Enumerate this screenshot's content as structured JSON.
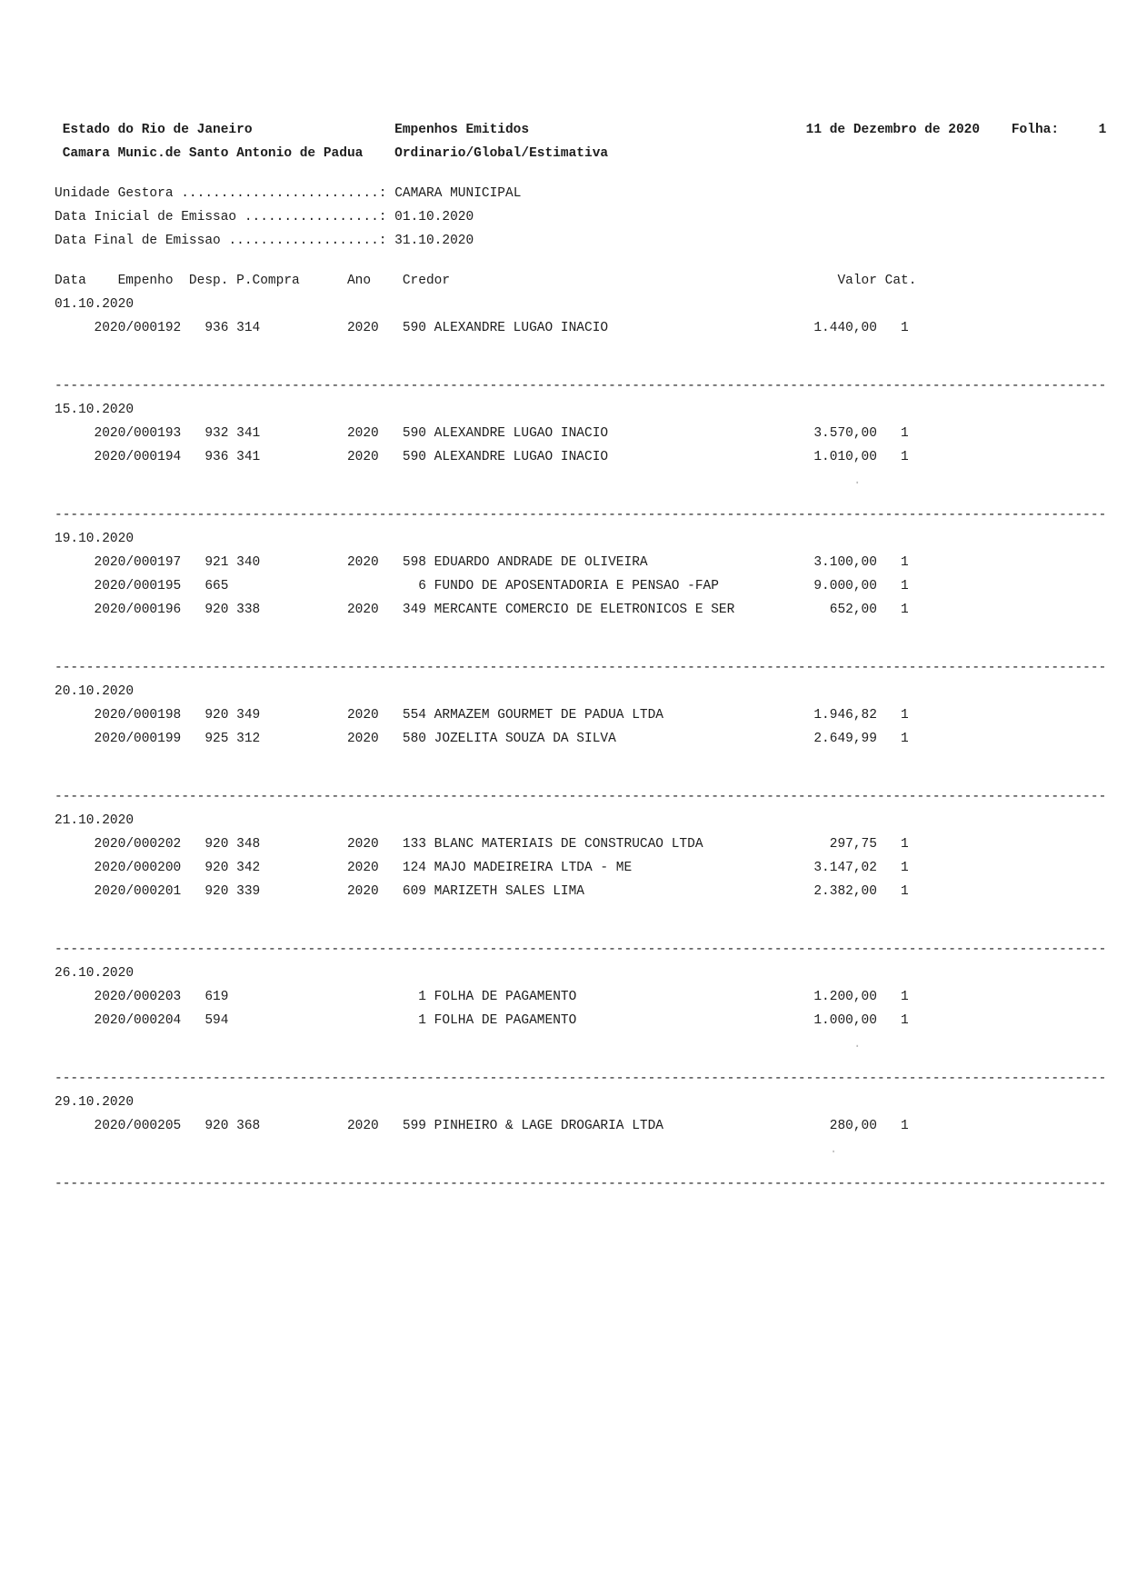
{
  "page": {
    "header": {
      "org_line1": "Estado do Rio de Janeiro",
      "org_line2": "Camara Munic.de Santo Antonio de Padua",
      "report_title": "Empenhos Emitidos",
      "report_subtitle": "Ordinario/Global/Estimativa",
      "emission_date": "11 de Dezembro de 2020",
      "folha_label": "Folha:",
      "folha_number": "1"
    },
    "filters": [
      {
        "label": "Unidade Gestora ",
        "dots": ".........................: ",
        "value": "CAMARA MUNICIPAL"
      },
      {
        "label": "Data Inicial de Emissao ",
        "dots": ".................: ",
        "value": "01.10.2020"
      },
      {
        "label": "Data Final de Emissao ",
        "dots": "...................: ",
        "value": "31.10.2020"
      }
    ],
    "columns": {
      "data": "Data",
      "empenho": "Empenho",
      "desp": "Desp.",
      "pcompra": "P.Compra",
      "ano": "Ano",
      "credor": "Credor",
      "valor": "Valor",
      "cat": "Cat."
    },
    "groups": [
      {
        "date": "01.10.2020",
        "trailing_dot": false,
        "rows": [
          {
            "empenho": "2020/000192",
            "desp": "936",
            "pcompra": "314",
            "ano": "2020",
            "credor_cod": "590",
            "credor": "ALEXANDRE LUGAO INACIO",
            "valor": "1.440,00",
            "cat": "1"
          }
        ]
      },
      {
        "date": "15.10.2020",
        "trailing_dot": true,
        "dot_col": 101,
        "rows": [
          {
            "empenho": "2020/000193",
            "desp": "932",
            "pcompra": "341",
            "ano": "2020",
            "credor_cod": "590",
            "credor": "ALEXANDRE LUGAO INACIO",
            "valor": "3.570,00",
            "cat": "1"
          },
          {
            "empenho": "2020/000194",
            "desp": "936",
            "pcompra": "341",
            "ano": "2020",
            "credor_cod": "590",
            "credor": "ALEXANDRE LUGAO INACIO",
            "valor": "1.010,00",
            "cat": "1"
          }
        ]
      },
      {
        "date": "19.10.2020",
        "trailing_dot": false,
        "rows": [
          {
            "empenho": "2020/000197",
            "desp": "921",
            "pcompra": "340",
            "ano": "2020",
            "credor_cod": "598",
            "credor": "EDUARDO ANDRADE DE OLIVEIRA",
            "valor": "3.100,00",
            "cat": "1"
          },
          {
            "empenho": "2020/000195",
            "desp": "665",
            "pcompra": "",
            "ano": "",
            "credor_cod": "6",
            "credor": "FUNDO DE APOSENTADORIA E PENSAO -FAP",
            "valor": "9.000,00",
            "cat": "1"
          },
          {
            "empenho": "2020/000196",
            "desp": "920",
            "pcompra": "338",
            "ano": "2020",
            "credor_cod": "349",
            "credor": "MERCANTE COMERCIO DE ELETRONICOS E SER",
            "valor": "652,00",
            "cat": "1"
          }
        ]
      },
      {
        "date": "20.10.2020",
        "trailing_dot": false,
        "rows": [
          {
            "empenho": "2020/000198",
            "desp": "920",
            "pcompra": "349",
            "ano": "2020",
            "credor_cod": "554",
            "credor": "ARMAZEM GOURMET DE PADUA LTDA",
            "valor": "1.946,82",
            "cat": "1"
          },
          {
            "empenho": "2020/000199",
            "desp": "925",
            "pcompra": "312",
            "ano": "2020",
            "credor_cod": "580",
            "credor": "JOZELITA SOUZA DA SILVA",
            "valor": "2.649,99",
            "cat": "1"
          }
        ]
      },
      {
        "date": "21.10.2020",
        "trailing_dot": false,
        "rows": [
          {
            "empenho": "2020/000202",
            "desp": "920",
            "pcompra": "348",
            "ano": "2020",
            "credor_cod": "133",
            "credor": "BLANC MATERIAIS DE CONSTRUCAO LTDA",
            "valor": "297,75",
            "cat": "1"
          },
          {
            "empenho": "2020/000200",
            "desp": "920",
            "pcompra": "342",
            "ano": "2020",
            "credor_cod": "124",
            "credor": "MAJO MADEIREIRA LTDA - ME",
            "valor": "3.147,02",
            "cat": "1"
          },
          {
            "empenho": "2020/000201",
            "desp": "920",
            "pcompra": "339",
            "ano": "2020",
            "credor_cod": "609",
            "credor": "MARIZETH SALES LIMA",
            "valor": "2.382,00",
            "cat": "1"
          }
        ]
      },
      {
        "date": "26.10.2020",
        "trailing_dot": true,
        "dot_col": 101,
        "rows": [
          {
            "empenho": "2020/000203",
            "desp": "619",
            "pcompra": "",
            "ano": "",
            "credor_cod": "1",
            "credor": "FOLHA DE PAGAMENTO",
            "valor": "1.200,00",
            "cat": "1"
          },
          {
            "empenho": "2020/000204",
            "desp": "594",
            "pcompra": "",
            "ano": "",
            "credor_cod": "1",
            "credor": "FOLHA DE PAGAMENTO",
            "valor": "1.000,00",
            "cat": "1"
          }
        ]
      },
      {
        "date": "29.10.2020",
        "trailing_dot": true,
        "dot_col": 98,
        "rows": [
          {
            "empenho": "2020/000205",
            "desp": "920",
            "pcompra": "368",
            "ano": "2020",
            "credor_cod": "599",
            "credor": "PINHEIRO & LAGE DROGARIA LTDA",
            "valor": "280,00",
            "cat": "1"
          }
        ]
      }
    ],
    "colors": {
      "ink": "#1d1d1d",
      "faint_dot": "#bdbdbd",
      "paper": "#ffffff"
    }
  }
}
